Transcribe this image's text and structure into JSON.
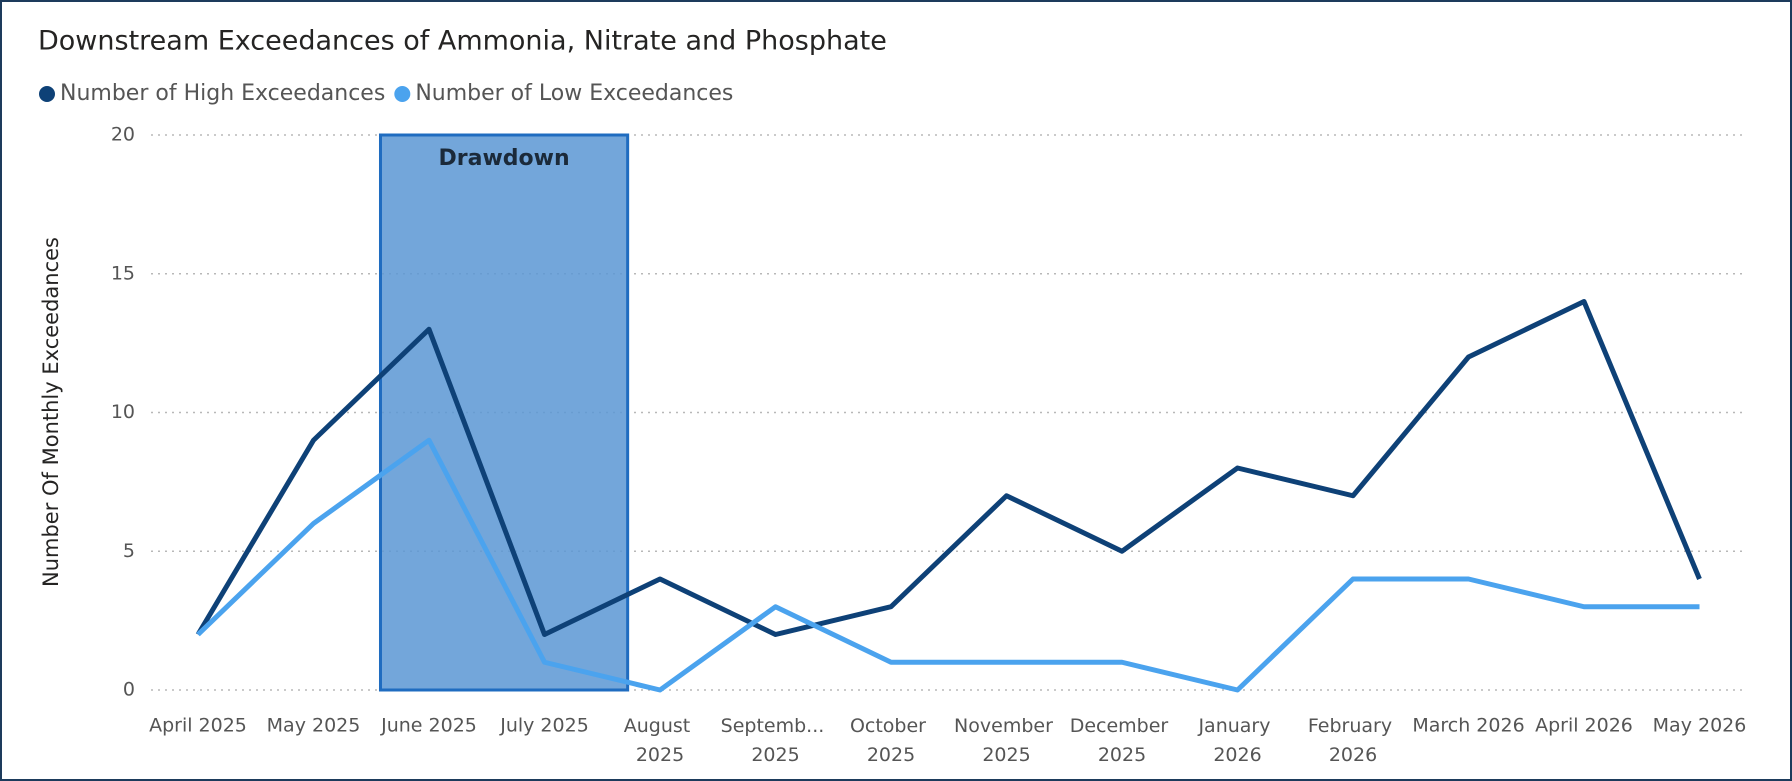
{
  "chart_data": {
    "type": "line",
    "title": "Downstream Exceedances of Ammonia, Nitrate and Phosphate",
    "y_label": "Number Of Monthly Exceedances",
    "categories": [
      "April 2025",
      "May 2025",
      "June 2025",
      "July 2025",
      "August 2025",
      "Septemb... 2025",
      "October 2025",
      "November 2025",
      "December 2025",
      "January 2026",
      "February 2026",
      "March 2026",
      "April 2026",
      "May 2026"
    ],
    "series": [
      {
        "name": "Number of High Exceedances",
        "color": "#0e4177",
        "values": [
          2,
          9,
          13,
          2,
          4,
          2,
          3,
          7,
          5,
          8,
          7,
          12,
          14,
          4
        ]
      },
      {
        "name": "Number of Low Exceedances",
        "color": "#4ba3ee",
        "values": [
          2,
          6,
          9,
          1,
          0,
          3,
          1,
          1,
          1,
          0,
          4,
          4,
          3,
          3
        ]
      }
    ],
    "annotation": "Drawdown",
    "ylim": [
      0,
      20
    ],
    "yticks": [
      0,
      5,
      10,
      15,
      20
    ],
    "grid": true,
    "legend": "top-left"
  }
}
